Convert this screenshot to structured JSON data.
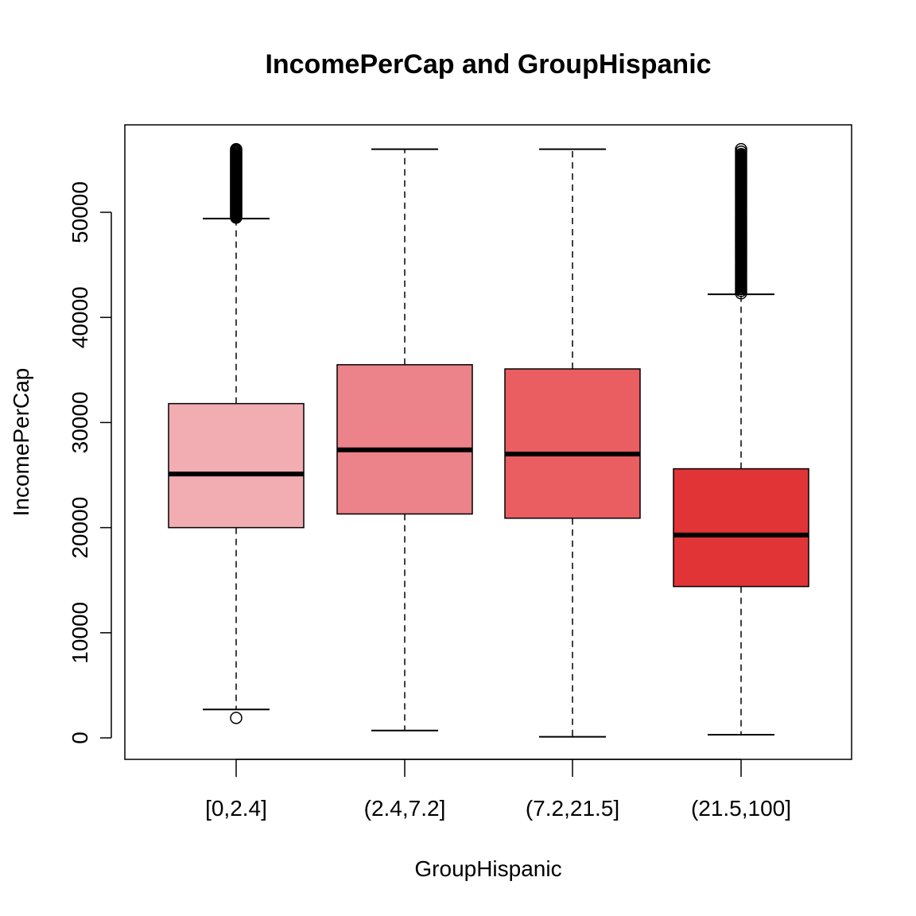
{
  "chart_data": {
    "type": "boxplot",
    "title": "IncomePerCap and GroupHispanic",
    "xlabel": "GroupHispanic",
    "ylabel": "IncomePerCap",
    "ylim": [
      -2000,
      58000
    ],
    "yticks": [
      0,
      10000,
      20000,
      30000,
      40000,
      50000
    ],
    "yticklabels": [
      "0",
      "10000",
      "20000",
      "30000",
      "40000",
      "50000"
    ],
    "categories": [
      "[0,2.4]",
      "(2.4,7.2]",
      "(7.2,21.5]",
      "(21.5,100]"
    ],
    "boxes": [
      {
        "category": "[0,2.4]",
        "whisker_low": 2700,
        "q1": 20000,
        "median": 25100,
        "q3": 31800,
        "whisker_high": 49400,
        "outliers_low": [
          1900
        ],
        "outliers_high_range": [
          49500,
          56000
        ],
        "color": "#f2adb2"
      },
      {
        "category": "(2.4,7.2]",
        "whisker_low": 700,
        "q1": 21300,
        "median": 27400,
        "q3": 35500,
        "whisker_high": 56000,
        "outliers_low": [],
        "outliers_high_range": [],
        "color": "#ec828a"
      },
      {
        "category": "(7.2,21.5]",
        "whisker_low": 100,
        "q1": 20900,
        "median": 27000,
        "q3": 35100,
        "whisker_high": 56000,
        "outliers_low": [],
        "outliers_high_range": [],
        "color": "#ea5e62"
      },
      {
        "category": "(21.5,100]",
        "whisker_low": 300,
        "q1": 14400,
        "median": 19300,
        "q3": 25600,
        "whisker_high": 42200,
        "outliers_low": [],
        "outliers_high_range": [
          42300,
          56000
        ],
        "color": "#e03436"
      }
    ],
    "grid": false,
    "legend": "none"
  }
}
